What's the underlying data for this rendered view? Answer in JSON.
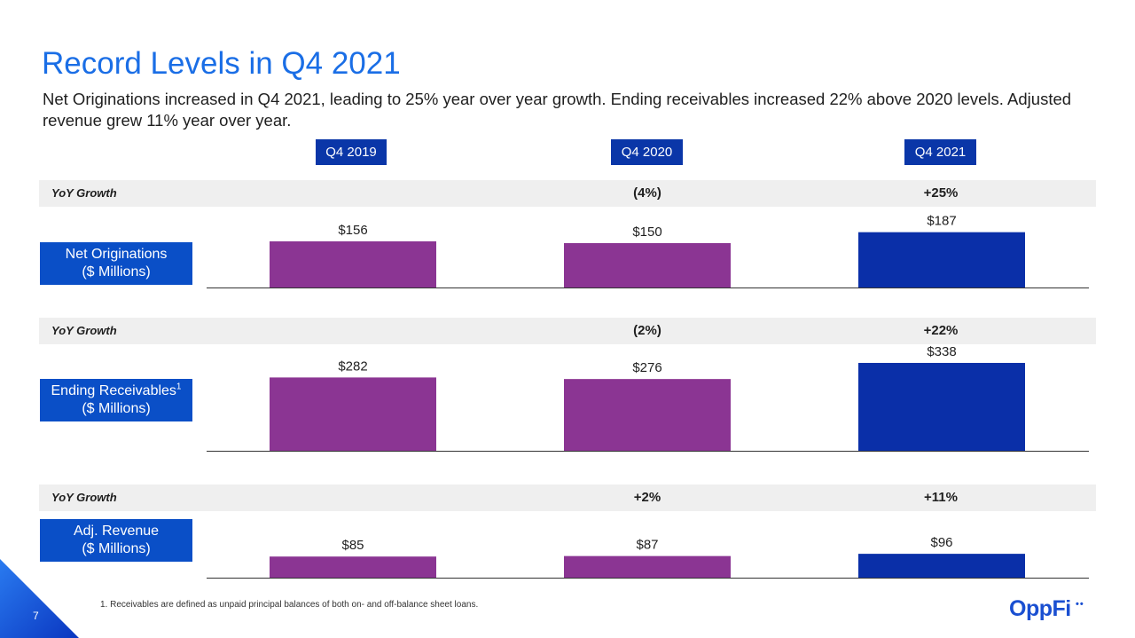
{
  "header": {
    "title": "Record Levels in Q4 2021",
    "subtitle": "Net Originations increased in Q4 2021, leading to 25% year over year growth. Ending receivables increased 22% above 2020 levels. Adjusted revenue grew 11% year over year."
  },
  "colors": {
    "title": "#1a6ee6",
    "header_bg": "#0a36a8",
    "metric_bg": "#0a4fc7",
    "bar_prior": "#8b3593",
    "bar_current": "#0a2fa8",
    "growth_band": "#efefef"
  },
  "columns": [
    "Q4 2019",
    "Q4 2020",
    "Q4 2021"
  ],
  "growth_label": "YoY Growth",
  "chart_data": [
    {
      "type": "bar",
      "name": "Net Originations",
      "unit_label": "($ Millions)",
      "categories": [
        "Q4 2019",
        "Q4 2020",
        "Q4 2021"
      ],
      "values": [
        156,
        150,
        187
      ],
      "value_labels": [
        "$156",
        "$150",
        "$187"
      ],
      "yoy_growth": [
        "",
        "(4%)",
        "+25%"
      ]
    },
    {
      "type": "bar",
      "name": "Ending Receivables",
      "name_footnote": "1",
      "unit_label": "($ Millions)",
      "categories": [
        "Q4 2019",
        "Q4 2020",
        "Q4 2021"
      ],
      "values": [
        282,
        276,
        338
      ],
      "value_labels": [
        "$282",
        "$276",
        "$338"
      ],
      "yoy_growth": [
        "",
        "(2%)",
        "+22%"
      ]
    },
    {
      "type": "bar",
      "name": "Adj. Revenue",
      "unit_label": "($ Millions)",
      "categories": [
        "Q4 2019",
        "Q4 2020",
        "Q4 2021"
      ],
      "values": [
        85,
        87,
        96
      ],
      "value_labels": [
        "$85",
        "$87",
        "$96"
      ],
      "yoy_growth": [
        "",
        "+2%",
        "+11%"
      ]
    }
  ],
  "footer": {
    "page_number": "7",
    "footnote": "1. Receivables are defined as unpaid principal balances of both on- and off-balance sheet loans.",
    "logo_text": "OppFi",
    "logo_mark": "••"
  }
}
